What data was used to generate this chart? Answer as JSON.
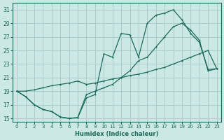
{
  "xlabel": "Humidex (Indice chaleur)",
  "ylabel": "",
  "xlim": [
    -0.5,
    23.5
  ],
  "ylim": [
    14.5,
    32
  ],
  "xticks": [
    0,
    1,
    2,
    3,
    4,
    5,
    6,
    7,
    8,
    9,
    10,
    11,
    12,
    13,
    14,
    15,
    16,
    17,
    18,
    19,
    20,
    21,
    22,
    23
  ],
  "yticks": [
    15,
    17,
    19,
    21,
    23,
    25,
    27,
    29,
    31
  ],
  "background_color": "#cce8e4",
  "grid_color": "#aaccca",
  "line_color": "#1a6b5a",
  "line1_x": [
    0,
    1,
    2,
    3,
    4,
    5,
    6,
    7,
    8,
    9,
    10,
    11,
    12,
    13,
    14,
    15,
    16,
    17,
    18,
    19,
    20,
    21,
    22,
    23
  ],
  "line1_y": [
    19,
    18.2,
    17.0,
    16.3,
    16.0,
    15.2,
    15.0,
    15.1,
    18.0,
    18.5,
    24.5,
    24.0,
    27.5,
    27.3,
    24.0,
    29.0,
    30.2,
    30.5,
    31.0,
    29.5,
    27.5,
    26.2,
    22.2,
    22.3
  ],
  "line2_x": [
    0,
    1,
    2,
    3,
    4,
    5,
    6,
    7,
    8,
    9,
    10,
    11,
    12,
    13,
    14,
    15,
    16,
    17,
    18,
    19,
    20,
    21,
    22,
    23
  ],
  "line2_y": [
    19,
    18.2,
    17.0,
    16.3,
    16.0,
    15.2,
    15.0,
    15.1,
    18.5,
    19.0,
    19.5,
    20.0,
    21.0,
    22.0,
    23.5,
    24.0,
    25.5,
    27.0,
    28.5,
    29.0,
    28.0,
    26.5,
    22.0,
    22.3
  ],
  "line3_x": [
    0,
    1,
    2,
    3,
    4,
    5,
    6,
    7,
    8,
    9,
    10,
    11,
    12,
    13,
    14,
    15,
    16,
    17,
    18,
    19,
    20,
    21,
    22,
    23
  ],
  "line3_y": [
    19.0,
    19.0,
    19.2,
    19.5,
    19.8,
    20.0,
    20.2,
    20.5,
    20.0,
    20.2,
    20.5,
    20.8,
    21.0,
    21.3,
    21.5,
    21.8,
    22.2,
    22.5,
    23.0,
    23.5,
    24.0,
    24.5,
    25.0,
    22.3
  ]
}
